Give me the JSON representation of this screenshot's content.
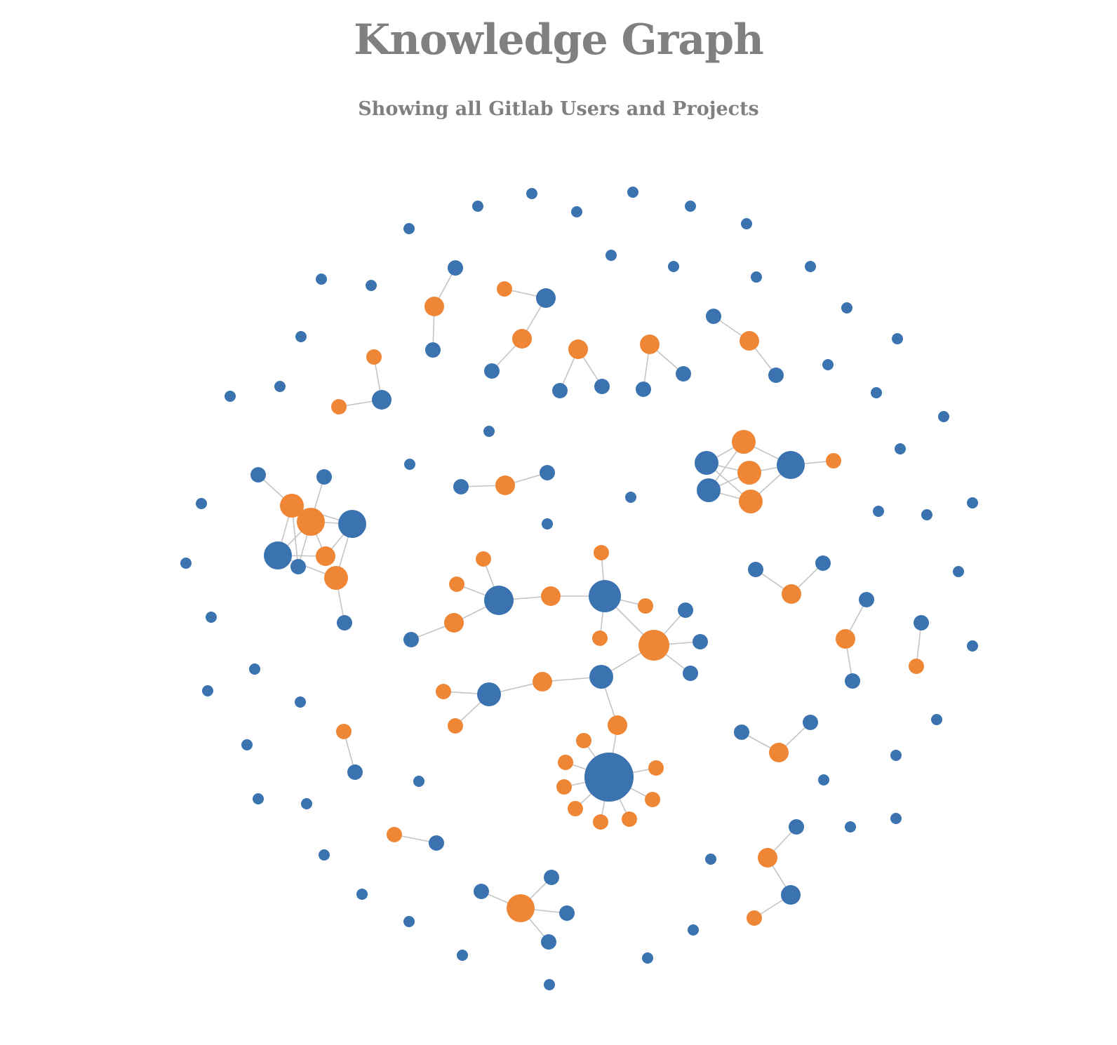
{
  "title": "Knowledge Graph",
  "subtitle": "Showing all Gitlab Users and Projects",
  "colors": {
    "user": "#3a73b0",
    "project": "#ef8636",
    "edge": "#c4c4c4",
    "text": "#808080"
  }
}
